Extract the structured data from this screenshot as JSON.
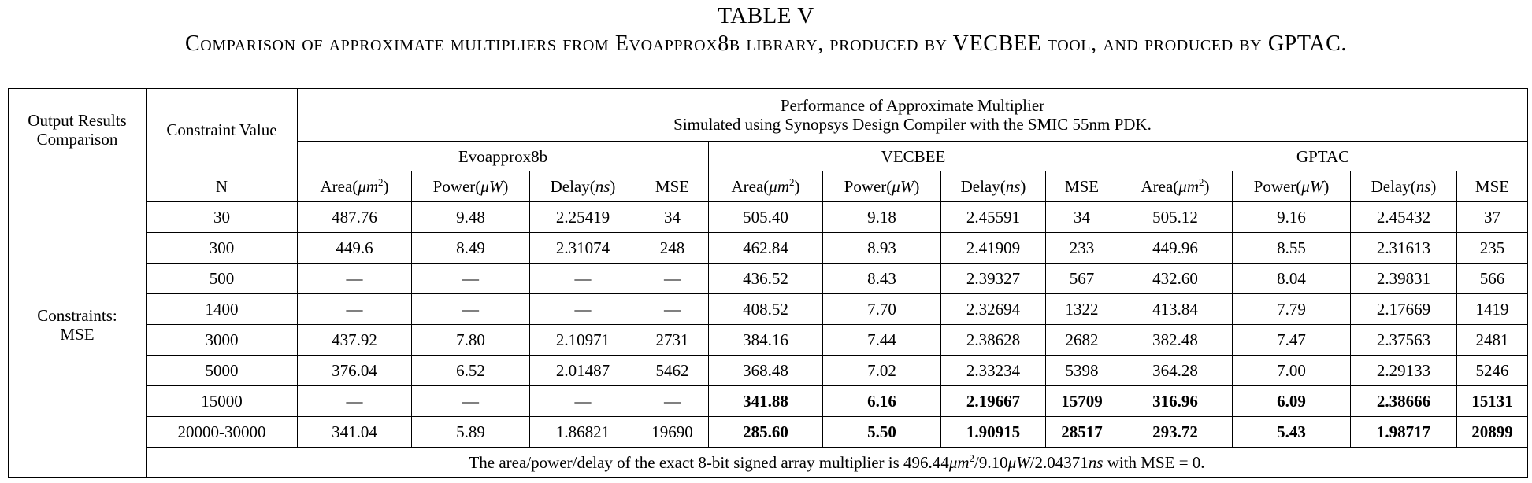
{
  "caption": {
    "number": "TABLE V",
    "title": "Comparison of approximate multipliers from Evoapprox8b library, produced by VECBEE tool, and produced by GPTAC."
  },
  "table": {
    "corner_label_line1": "Output Results",
    "corner_label_line2": "Comparison",
    "constraint_header": "Constraint Value",
    "performance_line1": "Performance of Approximate Multiplier",
    "performance_line2": "Simulated using Synopsys Design Compiler with the SMIC 55nm PDK.",
    "groups": [
      "Evoapprox8b",
      "VECBEE",
      "GPTAC"
    ],
    "n_header": "N",
    "metric_headers": [
      {
        "base": "Area(",
        "var": "μm",
        "sup": "2",
        "end": ")"
      },
      {
        "base": "Power(",
        "var": "μW",
        "sup": "",
        "end": ")"
      },
      {
        "base": "Delay(",
        "var": "ns",
        "sup": "",
        "end": ")"
      },
      {
        "base": "MSE",
        "var": "",
        "sup": "",
        "end": ""
      }
    ],
    "row_group_label_line1": "Constraints:",
    "row_group_label_line2": "MSE",
    "rows": [
      {
        "n": "30",
        "cells": [
          "487.76",
          "9.48",
          "2.25419",
          "34",
          "505.40",
          "9.18",
          "2.45591",
          "34",
          "505.12",
          "9.16",
          "2.45432",
          "37"
        ],
        "bold_from": 99
      },
      {
        "n": "300",
        "cells": [
          "449.6",
          "8.49",
          "2.31074",
          "248",
          "462.84",
          "8.93",
          "2.41909",
          "233",
          "449.96",
          "8.55",
          "2.31613",
          "235"
        ],
        "bold_from": 99
      },
      {
        "n": "500",
        "cells": [
          "—",
          "—",
          "—",
          "—",
          "436.52",
          "8.43",
          "2.39327",
          "567",
          "432.60",
          "8.04",
          "2.39831",
          "566"
        ],
        "bold_from": 99
      },
      {
        "n": "1400",
        "cells": [
          "—",
          "—",
          "—",
          "—",
          "408.52",
          "7.70",
          "2.32694",
          "1322",
          "413.84",
          "7.79",
          "2.17669",
          "1419"
        ],
        "bold_from": 99
      },
      {
        "n": "3000",
        "cells": [
          "437.92",
          "7.80",
          "2.10971",
          "2731",
          "384.16",
          "7.44",
          "2.38628",
          "2682",
          "382.48",
          "7.47",
          "2.37563",
          "2481"
        ],
        "bold_from": 99
      },
      {
        "n": "5000",
        "cells": [
          "376.04",
          "6.52",
          "2.01487",
          "5462",
          "368.48",
          "7.02",
          "2.33234",
          "5398",
          "364.28",
          "7.00",
          "2.29133",
          "5246"
        ],
        "bold_from": 99
      },
      {
        "n": "15000",
        "cells": [
          "—",
          "—",
          "—",
          "—",
          "341.88",
          "6.16",
          "2.19667",
          "15709",
          "316.96",
          "6.09",
          "2.38666",
          "15131"
        ],
        "bold_from": 4
      },
      {
        "n": "20000-30000",
        "cells": [
          "341.04",
          "5.89",
          "1.86821",
          "19690",
          "285.60",
          "5.50",
          "1.90915",
          "28517",
          "293.72",
          "5.43",
          "1.98717",
          "20899"
        ],
        "bold_from": 4
      }
    ],
    "footnote": {
      "prefix": "The area/power/delay of the exact 8-bit signed array multiplier is 496.44",
      "area_unit": "μm",
      "area_sup": "2",
      "mid1": "/9.10",
      "power_unit": "μW",
      "mid2": "/2.04371",
      "delay_unit": "ns",
      "suffix": " with MSE = 0."
    }
  }
}
